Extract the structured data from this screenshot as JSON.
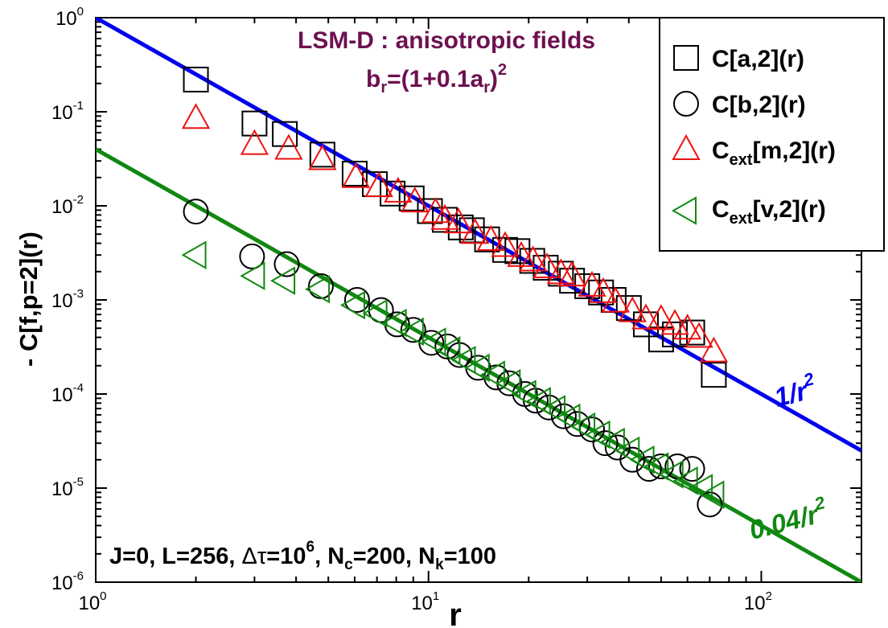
{
  "chart_data": {
    "type": "scatter",
    "x_scale": "log",
    "y_scale": "log",
    "xlim": [
      1,
      200
    ],
    "ylim": [
      1e-06,
      1
    ],
    "xlabel": "r",
    "ylabel": "- C[f,p=2](r)",
    "x_ticks": [
      {
        "base": "10",
        "exp": "0",
        "value": 1
      },
      {
        "base": "10",
        "exp": "1",
        "value": 10
      },
      {
        "base": "10",
        "exp": "2",
        "value": 100
      }
    ],
    "y_ticks": [
      {
        "base": "10",
        "exp": "0",
        "value": 1
      },
      {
        "base": "10",
        "exp": "-1",
        "value": 0.1
      },
      {
        "base": "10",
        "exp": "-2",
        "value": 0.01
      },
      {
        "base": "10",
        "exp": "-3",
        "value": 0.001
      },
      {
        "base": "10",
        "exp": "-4",
        "value": 0.0001
      },
      {
        "base": "10",
        "exp": "-5",
        "value": 1e-05
      },
      {
        "base": "10",
        "exp": "-6",
        "value": 1e-06
      }
    ],
    "title": {
      "line1": "LSM-D : anisotropic fields",
      "line2": {
        "b": "b",
        "sub_r": "r",
        "mid": "=(1+0.1a",
        "sub_r2": "r",
        "close": ")",
        "sup": "2"
      }
    },
    "parameters": {
      "p1": "J=0, L=256, ",
      "delta": "Δτ",
      "p2": "=10",
      "p2_sup": "6",
      "p3": ", N",
      "p3_sub": "c",
      "p4": "=200, N",
      "p4_sub": "k",
      "p5": "=100"
    },
    "fit_lines": [
      {
        "name": "blue-fit",
        "label_main": "1/r",
        "label_sup": "2",
        "amplitude": 1.0,
        "exponent": -2,
        "color": "#0000ee"
      },
      {
        "name": "green-fit",
        "label_main": "0.04/r",
        "label_sup": "2",
        "amplitude": 0.04,
        "exponent": -2,
        "color": "#118811"
      }
    ],
    "series": [
      {
        "name": "C[a,2](r)",
        "legend_main": "C",
        "legend_sub": "",
        "legend_rest": "[a,2](r)",
        "marker": "square",
        "color": "#000000",
        "x": [
          2,
          3,
          3.7,
          4.8,
          6,
          6.9,
          7.8,
          8.9,
          10.1,
          11.2,
          12.5,
          13.5,
          15,
          17,
          18.5,
          20.5,
          22.5,
          25,
          27,
          30,
          33,
          36,
          40,
          45,
          50,
          55,
          62,
          72
        ],
        "y": [
          0.22,
          0.075,
          0.058,
          0.035,
          0.022,
          0.017,
          0.0135,
          0.012,
          0.0088,
          0.0071,
          0.0059,
          0.0055,
          0.0044,
          0.0034,
          0.0033,
          0.0026,
          0.0022,
          0.0019,
          0.0016,
          0.0014,
          0.0012,
          0.001,
          0.00082,
          0.00055,
          0.00038,
          0.00043,
          0.00045,
          0.00016
        ]
      },
      {
        "name": "C[b,2](r)",
        "legend_main": "C",
        "legend_sub": "",
        "legend_rest": "[b,2](r)",
        "marker": "circle",
        "color": "#000000",
        "x": [
          2,
          2.95,
          3.75,
          4.75,
          6.1,
          7.2,
          8.05,
          9,
          10.2,
          11.4,
          12.4,
          14.1,
          16,
          17.5,
          19.5,
          21,
          23,
          25.5,
          28,
          31,
          34,
          37,
          41,
          46,
          50,
          56,
          62,
          70
        ],
        "y": [
          0.0087,
          0.0029,
          0.0024,
          0.0014,
          0.001,
          0.00078,
          0.00055,
          0.00048,
          0.00035,
          0.00032,
          0.00026,
          0.00019,
          0.00015,
          0.00013,
          0.0001,
          8.5e-05,
          7.2e-05,
          5.8e-05,
          4.8e-05,
          4.2e-05,
          3e-05,
          2.7e-05,
          2e-05,
          1.6e-05,
          1.7e-05,
          1.7e-05,
          1.6e-05,
          6.7e-06
        ]
      },
      {
        "name": "Cext[m,2](r)",
        "legend_main": "C",
        "legend_sub": "ext",
        "legend_rest": "[m,2](r)",
        "marker": "triangle-up",
        "color": "#ee1111",
        "x": [
          2,
          3,
          3.8,
          4.8,
          6.05,
          7.1,
          8.1,
          9.1,
          10.5,
          11.2,
          12.3,
          13.8,
          15.4,
          17,
          19,
          20.6,
          22.7,
          25,
          27,
          31,
          33.5,
          36.5,
          41,
          45,
          50,
          55,
          60,
          65,
          72
        ],
        "y": [
          0.085,
          0.045,
          0.04,
          0.031,
          0.02,
          0.016,
          0.014,
          0.011,
          0.0085,
          0.0072,
          0.0066,
          0.0051,
          0.0043,
          0.0037,
          0.0029,
          0.0026,
          0.0022,
          0.0019,
          0.0018,
          0.0014,
          0.0012,
          0.00095,
          0.00075,
          0.00063,
          0.00062,
          0.00055,
          0.00049,
          0.0004,
          0.00028
        ]
      },
      {
        "name": "Cext[v,2](r)",
        "legend_main": "C",
        "legend_sub": "ext",
        "legend_rest": "[v,2](r)",
        "marker": "triangle-left",
        "color": "#118811",
        "x": [
          2,
          3,
          3.7,
          4.7,
          6,
          7,
          8,
          9,
          10.5,
          11.6,
          12.9,
          14.2,
          15.8,
          17.6,
          19.6,
          21.7,
          24,
          26.6,
          29.5,
          32.7,
          36.2,
          40.1,
          44.4,
          49,
          54.3,
          60,
          66.5,
          72
        ],
        "y": [
          0.003,
          0.0018,
          0.0016,
          0.0013,
          0.00088,
          0.00072,
          0.00057,
          0.00046,
          0.00036,
          0.00029,
          0.00023,
          0.00019,
          0.00016,
          0.00013,
          0.0001,
          8.4e-05,
          6.9e-05,
          5.6e-05,
          4.5e-05,
          3.7e-05,
          3.1e-05,
          2.5e-05,
          2e-05,
          1.7e-05,
          1.4e-05,
          1.2e-05,
          1e-05,
          8.5e-06
        ]
      }
    ],
    "legend_position": "top-right",
    "grid": false
  },
  "colors": {
    "title": "#6d1150",
    "axis": "#000000"
  }
}
